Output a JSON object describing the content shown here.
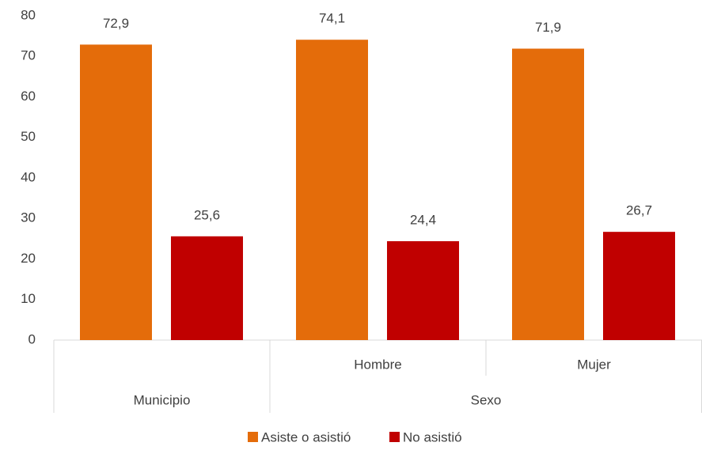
{
  "chart_data": {
    "type": "bar",
    "category_groups": [
      {
        "name": "Municipio",
        "categories": [
          null
        ]
      },
      {
        "name": "Sexo",
        "categories": [
          "Hombre",
          "Mujer"
        ]
      }
    ],
    "series": [
      {
        "name": "Asiste o asistió",
        "color": "#e46c0a",
        "values": [
          72.9,
          74.1,
          71.9
        ],
        "value_labels": [
          "72,9",
          "74,1",
          "71,9"
        ]
      },
      {
        "name": "No asistió",
        "color": "#c00000",
        "values": [
          25.6,
          24.4,
          26.7
        ],
        "value_labels": [
          "25,6",
          "24,4",
          "26,7"
        ]
      }
    ],
    "ylim": [
      0,
      80
    ],
    "yticks": [
      0,
      10,
      20,
      30,
      40,
      50,
      60,
      70,
      80
    ],
    "grid": false,
    "legend": "bottom"
  }
}
